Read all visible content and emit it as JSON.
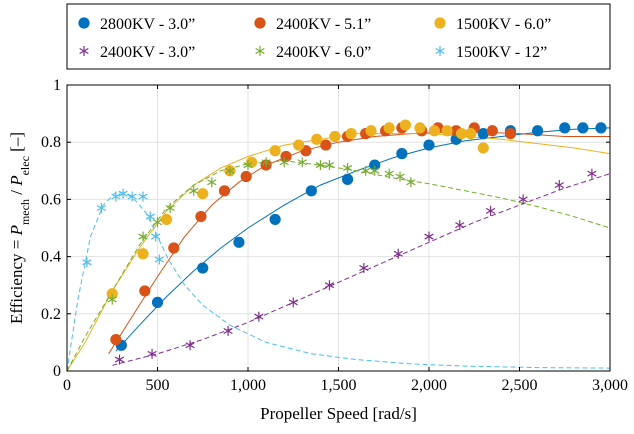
{
  "chart_data": {
    "type": "scatter",
    "xlabel": "Propeller Speed [rad/s]",
    "ylabel_parts": {
      "prefix": "Efficiency = ",
      "num_var": "P",
      "num_sub": "mech",
      "slash": " / ",
      "den_var": "P",
      "den_sub": "elec",
      "unit": " [–]"
    },
    "xlim": [
      0,
      3000
    ],
    "ylim": [
      0,
      1
    ],
    "x_ticks": [
      0,
      500,
      1000,
      1500,
      2000,
      2500,
      3000
    ],
    "x_tick_labels": [
      "0",
      "500",
      "1,000",
      "1,500",
      "2,000",
      "2,500",
      "3,000"
    ],
    "y_ticks": [
      0,
      0.2,
      0.4,
      0.6,
      0.8,
      1
    ],
    "y_tick_labels": [
      "0",
      "0.2",
      "0.4",
      "0.6",
      "0.8",
      "1"
    ],
    "grid": true,
    "legend_position": "top",
    "series": [
      {
        "name": "2800KV - 3.0”",
        "color": "#0072BD",
        "marker": "circle",
        "line_style": "solid",
        "points": [
          [
            300,
            0.09
          ],
          [
            500,
            0.24
          ],
          [
            750,
            0.36
          ],
          [
            950,
            0.45
          ],
          [
            1150,
            0.53
          ],
          [
            1350,
            0.63
          ],
          [
            1550,
            0.67
          ],
          [
            1700,
            0.72
          ],
          [
            1850,
            0.76
          ],
          [
            2000,
            0.79
          ],
          [
            2150,
            0.81
          ],
          [
            2300,
            0.83
          ],
          [
            2450,
            0.84
          ],
          [
            2600,
            0.84
          ],
          [
            2750,
            0.85
          ],
          [
            2850,
            0.85
          ],
          [
            2950,
            0.85
          ]
        ],
        "fit": [
          [
            270,
            0.07
          ],
          [
            400,
            0.16
          ],
          [
            550,
            0.26
          ],
          [
            700,
            0.35
          ],
          [
            850,
            0.43
          ],
          [
            1000,
            0.5
          ],
          [
            1200,
            0.58
          ],
          [
            1400,
            0.65
          ],
          [
            1600,
            0.7
          ],
          [
            1800,
            0.745
          ],
          [
            2000,
            0.78
          ],
          [
            2200,
            0.805
          ],
          [
            2400,
            0.82
          ],
          [
            2600,
            0.835
          ],
          [
            2800,
            0.845
          ],
          [
            3000,
            0.85
          ]
        ]
      },
      {
        "name": "2400KV - 5.1”",
        "color": "#D95319",
        "marker": "circle",
        "line_style": "solid",
        "points": [
          [
            270,
            0.11
          ],
          [
            430,
            0.28
          ],
          [
            590,
            0.43
          ],
          [
            740,
            0.54
          ],
          [
            870,
            0.63
          ],
          [
            990,
            0.68
          ],
          [
            1100,
            0.72
          ],
          [
            1210,
            0.75
          ],
          [
            1320,
            0.77
          ],
          [
            1430,
            0.79
          ],
          [
            1550,
            0.82
          ],
          [
            1650,
            0.83
          ],
          [
            1760,
            0.84
          ],
          [
            1850,
            0.85
          ],
          [
            1960,
            0.84
          ],
          [
            2050,
            0.85
          ],
          [
            2150,
            0.84
          ],
          [
            2250,
            0.85
          ],
          [
            2350,
            0.84
          ],
          [
            2450,
            0.83
          ]
        ],
        "fit": [
          [
            230,
            0.06
          ],
          [
            350,
            0.18
          ],
          [
            500,
            0.33
          ],
          [
            650,
            0.47
          ],
          [
            800,
            0.58
          ],
          [
            950,
            0.66
          ],
          [
            1100,
            0.72
          ],
          [
            1300,
            0.77
          ],
          [
            1500,
            0.8
          ],
          [
            1700,
            0.82
          ],
          [
            1900,
            0.83
          ],
          [
            2100,
            0.835
          ],
          [
            2300,
            0.835
          ],
          [
            2500,
            0.83
          ],
          [
            2750,
            0.82
          ],
          [
            3000,
            0.82
          ]
        ]
      },
      {
        "name": "1500KV - 6.0”",
        "color": "#EDB120",
        "marker": "circle",
        "line_style": "solid",
        "points": [
          [
            250,
            0.27
          ],
          [
            420,
            0.41
          ],
          [
            550,
            0.53
          ],
          [
            750,
            0.62
          ],
          [
            900,
            0.7
          ],
          [
            1020,
            0.73
          ],
          [
            1150,
            0.77
          ],
          [
            1280,
            0.79
          ],
          [
            1380,
            0.81
          ],
          [
            1480,
            0.82
          ],
          [
            1570,
            0.83
          ],
          [
            1680,
            0.84
          ],
          [
            1780,
            0.85
          ],
          [
            1870,
            0.86
          ],
          [
            1950,
            0.85
          ],
          [
            2030,
            0.84
          ],
          [
            2100,
            0.84
          ],
          [
            2180,
            0.83
          ],
          [
            2230,
            0.83
          ],
          [
            2300,
            0.78
          ]
        ],
        "fit": [
          [
            0,
            0.0
          ],
          [
            100,
            0.1
          ],
          [
            250,
            0.28
          ],
          [
            400,
            0.43
          ],
          [
            550,
            0.56
          ],
          [
            700,
            0.65
          ],
          [
            850,
            0.71
          ],
          [
            1000,
            0.75
          ],
          [
            1200,
            0.79
          ],
          [
            1400,
            0.81
          ],
          [
            1600,
            0.83
          ],
          [
            1800,
            0.83
          ],
          [
            2000,
            0.83
          ],
          [
            2200,
            0.82
          ],
          [
            2400,
            0.81
          ],
          [
            2600,
            0.795
          ],
          [
            2800,
            0.78
          ],
          [
            3000,
            0.76
          ]
        ]
      },
      {
        "name": "2400KV - 3.0”",
        "color": "#7E2F8E",
        "marker": "asterisk",
        "line_style": "dashed",
        "points": [
          [
            290,
            0.04
          ],
          [
            470,
            0.06
          ],
          [
            680,
            0.09
          ],
          [
            890,
            0.14
          ],
          [
            1060,
            0.19
          ],
          [
            1250,
            0.24
          ],
          [
            1450,
            0.3
          ],
          [
            1640,
            0.36
          ],
          [
            1830,
            0.41
          ],
          [
            2000,
            0.47
          ],
          [
            2170,
            0.51
          ],
          [
            2340,
            0.56
          ],
          [
            2520,
            0.6
          ],
          [
            2720,
            0.65
          ],
          [
            2900,
            0.69
          ]
        ],
        "fit": [
          [
            250,
            0.02
          ],
          [
            500,
            0.06
          ],
          [
            750,
            0.11
          ],
          [
            1000,
            0.17
          ],
          [
            1250,
            0.24
          ],
          [
            1500,
            0.31
          ],
          [
            1750,
            0.38
          ],
          [
            2000,
            0.45
          ],
          [
            2250,
            0.52
          ],
          [
            2500,
            0.58
          ],
          [
            2750,
            0.64
          ],
          [
            3000,
            0.69
          ]
        ]
      },
      {
        "name": "2400KV - 6.0”",
        "color": "#77AC30",
        "marker": "asterisk",
        "line_style": "dashed",
        "points": [
          [
            250,
            0.25
          ],
          [
            420,
            0.47
          ],
          [
            500,
            0.52
          ],
          [
            570,
            0.57
          ],
          [
            700,
            0.63
          ],
          [
            800,
            0.66
          ],
          [
            900,
            0.7
          ],
          [
            1000,
            0.72
          ],
          [
            1100,
            0.73
          ],
          [
            1200,
            0.73
          ],
          [
            1300,
            0.73
          ],
          [
            1400,
            0.72
          ],
          [
            1450,
            0.72
          ],
          [
            1550,
            0.71
          ],
          [
            1650,
            0.7
          ],
          [
            1700,
            0.7
          ],
          [
            1780,
            0.69
          ],
          [
            1840,
            0.68
          ],
          [
            1900,
            0.66
          ]
        ],
        "fit": [
          [
            0,
            0.0
          ],
          [
            100,
            0.12
          ],
          [
            250,
            0.28
          ],
          [
            400,
            0.44
          ],
          [
            550,
            0.57
          ],
          [
            700,
            0.65
          ],
          [
            850,
            0.7
          ],
          [
            1000,
            0.725
          ],
          [
            1200,
            0.735
          ],
          [
            1400,
            0.72
          ],
          [
            1600,
            0.7
          ],
          [
            1800,
            0.675
          ],
          [
            2000,
            0.655
          ],
          [
            2200,
            0.63
          ],
          [
            2400,
            0.605
          ],
          [
            2600,
            0.575
          ],
          [
            2800,
            0.54
          ],
          [
            3000,
            0.5
          ]
        ]
      },
      {
        "name": "1500KV - 12”",
        "color": "#4DBEEE",
        "marker": "asterisk",
        "line_style": "dashed",
        "points": [
          [
            110,
            0.38
          ],
          [
            190,
            0.57
          ],
          [
            270,
            0.61
          ],
          [
            310,
            0.62
          ],
          [
            360,
            0.61
          ],
          [
            420,
            0.61
          ],
          [
            460,
            0.54
          ],
          [
            490,
            0.47
          ],
          [
            510,
            0.39
          ]
        ],
        "fit": [
          [
            0,
            0.0
          ],
          [
            60,
            0.25
          ],
          [
            130,
            0.47
          ],
          [
            200,
            0.58
          ],
          [
            270,
            0.625
          ],
          [
            330,
            0.62
          ],
          [
            380,
            0.595
          ],
          [
            440,
            0.55
          ],
          [
            500,
            0.47
          ],
          [
            560,
            0.39
          ],
          [
            650,
            0.3
          ],
          [
            750,
            0.23
          ],
          [
            900,
            0.16
          ],
          [
            1100,
            0.1
          ],
          [
            1350,
            0.06
          ],
          [
            1600,
            0.04
          ],
          [
            1900,
            0.025
          ],
          [
            2200,
            0.017
          ],
          [
            2600,
            0.012
          ],
          [
            3000,
            0.01
          ]
        ]
      }
    ]
  }
}
